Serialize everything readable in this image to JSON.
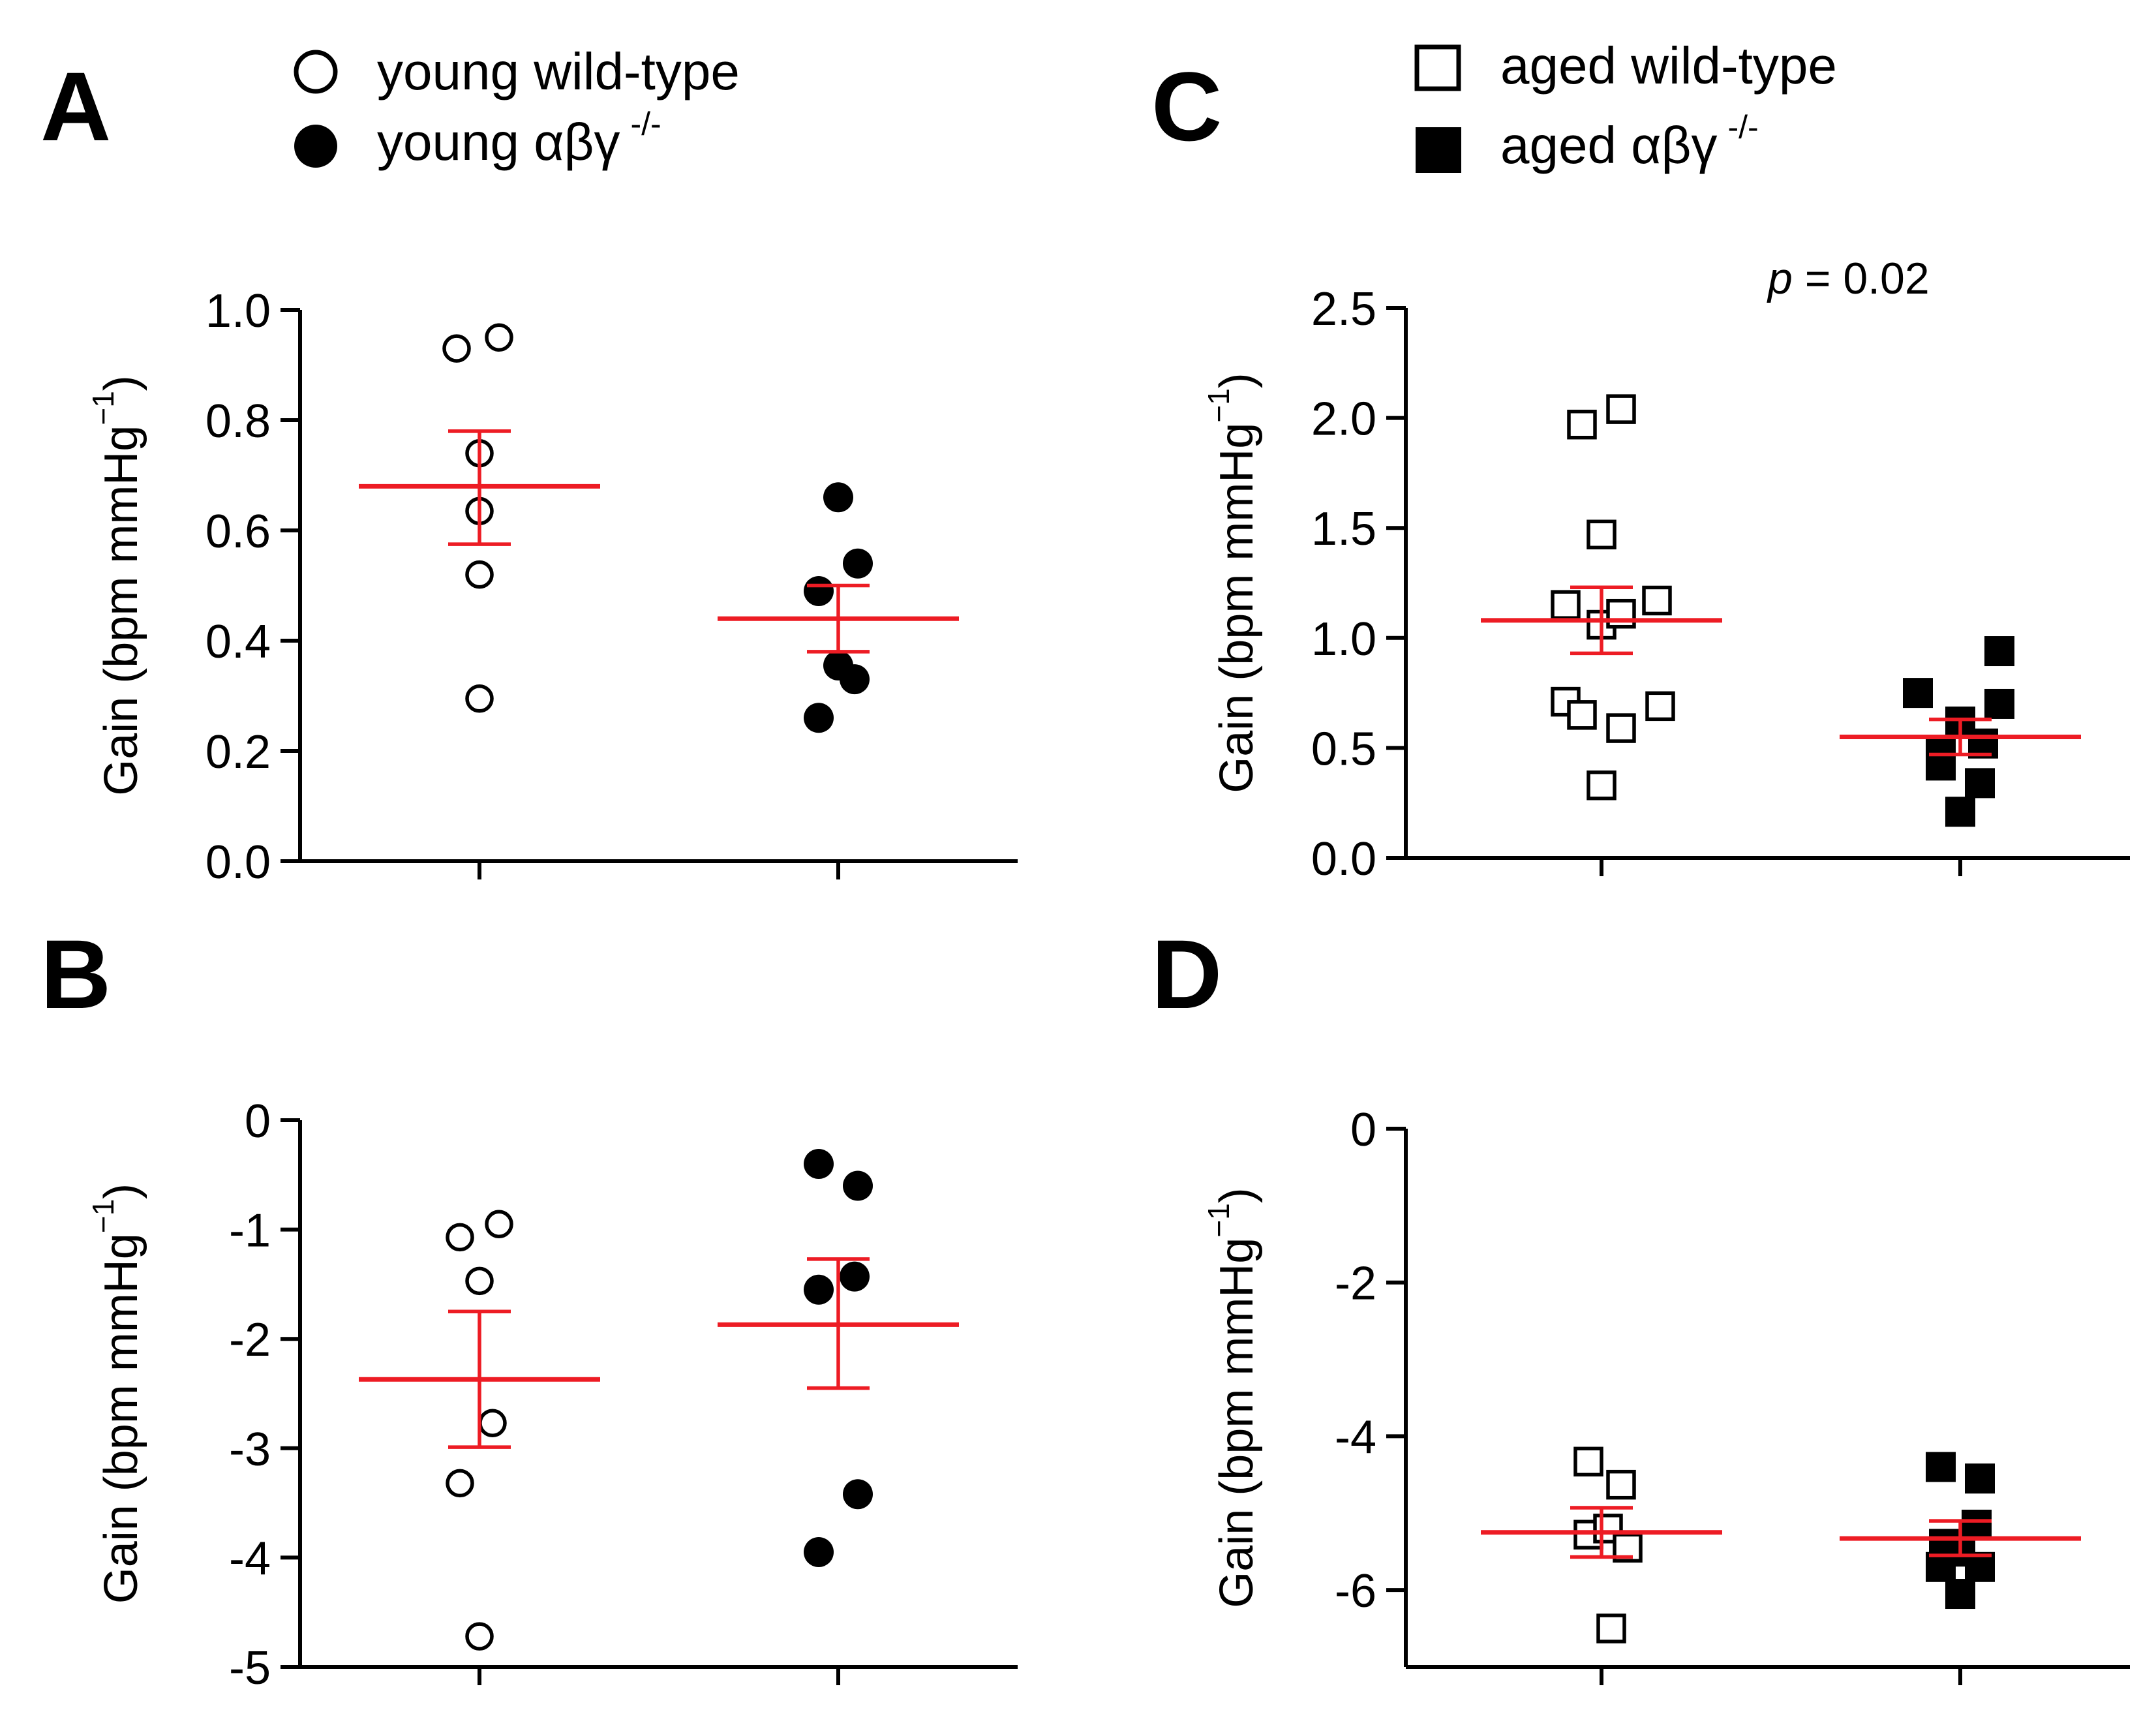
{
  "legend_left": [
    {
      "label": "young wild-type",
      "greek": "",
      "sup": "",
      "marker": "circle-open"
    },
    {
      "label": "young ",
      "greek": "αβγ",
      "sup": "-/-",
      "marker": "circle-filled"
    }
  ],
  "legend_right": [
    {
      "label": "aged wild-type",
      "greek": "",
      "sup": "",
      "marker": "square-open"
    },
    {
      "label": "aged ",
      "greek": "αβγ",
      "sup": "-/-",
      "marker": "square-filled"
    }
  ],
  "colors": {
    "mean_bar": "#ed1c24",
    "marker": "#000000",
    "axis": "#000000"
  },
  "chart_data": [
    {
      "panel": "A",
      "type": "scatter",
      "ylabel": "Gain (bpm mmHg",
      "ylabel_sup": "−1",
      "ylabel_close": ")",
      "ylim": [
        0,
        1.0
      ],
      "yticks": [
        0.0,
        0.2,
        0.4,
        0.6,
        0.8,
        1.0
      ],
      "ytick_labels": [
        "0.0",
        "0.2",
        "0.4",
        "0.6",
        "0.8",
        "1.0"
      ],
      "annotation": "",
      "series": [
        {
          "name": "young wild-type",
          "marker": "circle-open",
          "x": [
            0.93,
            1.06,
            1.0,
            1.0,
            1.0,
            1.0
          ],
          "values": [
            0.93,
            0.95,
            0.74,
            0.635,
            0.52,
            0.295
          ],
          "mean": 0.68,
          "sem_low": 0.575,
          "sem_high": 0.78
        },
        {
          "name": "young αβγ -/-",
          "marker": "circle-filled",
          "x": [
            1.0,
            0.94,
            1.06,
            1.0,
            1.05,
            0.94
          ],
          "values": [
            0.66,
            0.49,
            0.54,
            0.355,
            0.33,
            0.26
          ],
          "mean": 0.44,
          "sem_low": 0.38,
          "sem_high": 0.5
        }
      ]
    },
    {
      "panel": "B",
      "type": "scatter",
      "ylabel": "Gain (bpm mmHg",
      "ylabel_sup": "−1",
      "ylabel_close": ")",
      "ylim": [
        -5,
        0
      ],
      "yticks": [
        -5,
        -4,
        -3,
        -2,
        -1,
        0
      ],
      "ytick_labels": [
        "-5",
        "-4",
        "-3",
        "-2",
        "-1",
        "0"
      ],
      "annotation": "",
      "series": [
        {
          "name": "young wild-type",
          "marker": "circle-open",
          "x": [
            0.94,
            1.06,
            1.0,
            1.04,
            0.94,
            1.0
          ],
          "values": [
            -1.07,
            -0.95,
            -1.47,
            -2.77,
            -3.32,
            -4.72
          ],
          "mean": -2.37,
          "sem_low": -2.99,
          "sem_high": -1.75
        },
        {
          "name": "young αβγ -/-",
          "marker": "circle-filled",
          "x": [
            0.94,
            1.06,
            0.94,
            1.05,
            1.06,
            0.94
          ],
          "values": [
            -0.4,
            -0.6,
            -1.55,
            -1.43,
            -3.42,
            -3.95
          ],
          "mean": -1.87,
          "sem_low": -2.45,
          "sem_high": -1.27
        }
      ]
    },
    {
      "panel": "C",
      "type": "scatter",
      "ylabel": "Gain (bpm mmHg",
      "ylabel_sup": "−1",
      "ylabel_close": ")",
      "ylim": [
        0,
        2.5
      ],
      "yticks": [
        0.0,
        0.5,
        1.0,
        1.5,
        2.0,
        2.5
      ],
      "ytick_labels": [
        "0.0",
        "0.5",
        "1.0",
        "1.5",
        "2.0",
        "2.5"
      ],
      "annotation_p": "p",
      "annotation": " = 0.02",
      "series": [
        {
          "name": "aged wild-type",
          "marker": "square-open",
          "x": [
            0.94,
            1.06,
            1.0,
            0.89,
            1.0,
            1.06,
            1.17,
            0.89,
            0.94,
            1.06,
            1.18,
            1.0
          ],
          "values": [
            1.97,
            2.04,
            1.47,
            1.15,
            1.06,
            1.11,
            1.17,
            0.71,
            0.65,
            0.59,
            0.69,
            0.33
          ],
          "mean": 1.08,
          "sem_low": 0.93,
          "sem_high": 1.23
        },
        {
          "name": "aged αβγ -/-",
          "marker": "square-filled",
          "x": [
            1.12,
            0.87,
            1.0,
            1.12,
            0.94,
            1.07,
            0.94,
            1.06,
            1.0
          ],
          "values": [
            0.94,
            0.75,
            0.62,
            0.7,
            0.48,
            0.52,
            0.42,
            0.34,
            0.21
          ],
          "mean": 0.55,
          "sem_low": 0.47,
          "sem_high": 0.63
        }
      ]
    },
    {
      "panel": "D",
      "type": "scatter",
      "ylabel": "Gain (bpm mmHg",
      "ylabel_sup": "−1",
      "ylabel_close": ")",
      "ylim": [
        -7,
        0
      ],
      "yticks": [
        -6,
        -4,
        -2,
        0
      ],
      "ytick_labels": [
        "-6",
        "-4",
        "-2",
        "0"
      ],
      "annotation": "",
      "series": [
        {
          "name": "aged wild-type",
          "marker": "square-open",
          "x": [
            0.96,
            1.06,
            0.96,
            1.02,
            1.08,
            1.03
          ],
          "values": [
            -4.33,
            -4.63,
            -5.28,
            -5.2,
            -5.45,
            -6.5
          ],
          "mean": -5.25,
          "sem_low": -5.57,
          "sem_high": -4.93
        },
        {
          "name": "aged αβγ -/-",
          "marker": "square-filled",
          "x": [
            0.94,
            1.06,
            0.95,
            1.05,
            1.0,
            0.94,
            1.06,
            1.0
          ],
          "values": [
            -4.4,
            -4.55,
            -5.4,
            -5.15,
            -5.5,
            -5.7,
            -5.7,
            -6.05
          ],
          "mean": -5.33,
          "sem_low": -5.55,
          "sem_high": -5.1
        }
      ]
    }
  ],
  "panel_letters": [
    "A",
    "B",
    "C",
    "D"
  ]
}
